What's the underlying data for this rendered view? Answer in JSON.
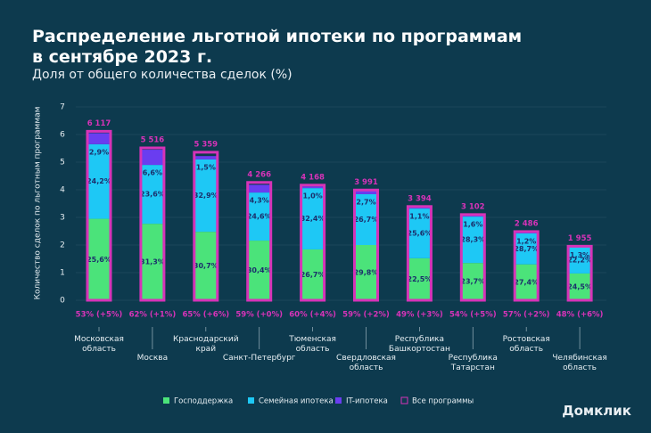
{
  "chart_data": {
    "type": "bar",
    "stacked": true,
    "title": "Распределение льготной ипотеки по программам\nв сентябре 2023 г.",
    "subtitle": "Доля от общего количества сделок (%)",
    "y_label": "Количество сделок по льготным программам",
    "categories": [
      "Московская\nобласть",
      "Москва",
      "Краснодарский\nкрай",
      "Санкт-Петербург",
      "Тюменская\nобласть",
      "Свердловская\nобласть",
      "Республика\nБашкортостан",
      "Республика\nТатарстан",
      "Ростовская\nобласть",
      "Челябинская\nобласть"
    ],
    "series": [
      {
        "name": "Господдержка",
        "color": "#4be37a",
        "values": [
          2.95,
          2.77,
          2.48,
          2.16,
          1.84,
          2.0,
          1.52,
          1.35,
          1.3,
          0.97
        ],
        "share_labels": [
          "25,6%",
          "31,3%",
          "30,7%",
          "30,4%",
          "26,7%",
          "29,8%",
          "22,5%",
          "23,7%",
          "27,4%",
          "24,5%"
        ]
      },
      {
        "name": "Семейная ипотека",
        "color": "#1ec8f5",
        "values": [
          2.7,
          2.13,
          2.62,
          1.74,
          2.22,
          1.84,
          1.8,
          1.68,
          1.12,
          0.95
        ],
        "share_labels": [
          "24,2%",
          "23,6%",
          "32,9%",
          "24,6%",
          "32,4%",
          "26,7%",
          "25,6%",
          "28,3%",
          "28,7%",
          "22,2%"
        ]
      },
      {
        "name": "IT-ипотека",
        "color": "#6a3df0",
        "values": [
          0.4,
          0.55,
          0.12,
          0.28,
          0.06,
          0.12,
          0.04,
          0.05,
          0.04,
          0.02
        ],
        "share_labels": [
          "2,9%",
          "6,6%",
          "1,5%",
          "4,3%",
          "1,0%",
          "2,7%",
          "1,1%",
          "1,6%",
          "1,2%",
          "1,3%"
        ]
      }
    ],
    "totals": {
      "name": "Все программы",
      "color": "#d633b8",
      "values": [
        6.117,
        5.516,
        5.359,
        4.266,
        4.168,
        3.991,
        3.394,
        3.102,
        2.486,
        1.955
      ],
      "value_labels": [
        "6 117",
        "5 516",
        "5 359",
        "4 266",
        "4 168",
        "3 991",
        "3 394",
        "3 102",
        "2 486",
        "1 955"
      ]
    },
    "footer_labels": [
      "53% (+5%)",
      "62% (+1%)",
      "65% (+6%)",
      "59% (+0%)",
      "60% (+4%)",
      "59% (+2%)",
      "49% (+3%)",
      "54% (+5%)",
      "57% (+2%)",
      "48% (+6%)"
    ],
    "ylim": [
      0,
      7
    ],
    "yticks": [
      0,
      1,
      2,
      3,
      4,
      5,
      6,
      7
    ],
    "grid": true,
    "logo": "Домклик"
  }
}
